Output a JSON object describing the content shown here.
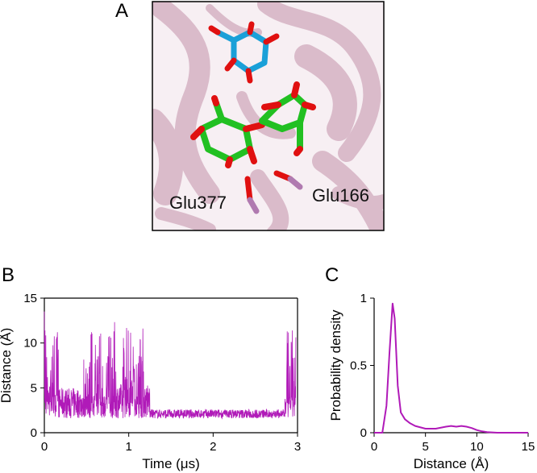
{
  "panels": {
    "a": {
      "label": "A",
      "residue_labels": [
        "Glu377",
        "Glu166"
      ],
      "colors": {
        "protein_ribbon": "#d6b3c4",
        "ligand_top": "#1aa0d8",
        "ligand_main": "#22c022",
        "oxygen": "#e01010",
        "residue": "#b07ab0"
      }
    },
    "b": {
      "label": "B"
    },
    "c": {
      "label": "C"
    }
  },
  "chart_data": [
    {
      "type": "line",
      "panel": "B",
      "xlabel": "Time (μs)",
      "ylabel": "Distance (Å)",
      "xlim": [
        0,
        3
      ],
      "ylim": [
        0,
        15
      ],
      "xticks": [
        "0",
        "1",
        "2",
        "3"
      ],
      "yticks": [
        "0",
        "5",
        "10",
        "15"
      ],
      "color": "#b01ab8",
      "segments": [
        {
          "x0": 0.0,
          "x1": 0.04,
          "low": 2.0,
          "high": 14.5
        },
        {
          "x0": 0.04,
          "x1": 0.17,
          "low": 1.8,
          "high": 11.5
        },
        {
          "x0": 0.17,
          "x1": 0.45,
          "low": 1.6,
          "high": 5.0
        },
        {
          "x0": 0.45,
          "x1": 0.55,
          "low": 1.6,
          "high": 8.5
        },
        {
          "x0": 0.55,
          "x1": 0.85,
          "low": 1.6,
          "high": 12.5
        },
        {
          "x0": 0.85,
          "x1": 0.92,
          "low": 1.6,
          "high": 5.5
        },
        {
          "x0": 0.92,
          "x1": 1.18,
          "low": 1.6,
          "high": 12.0
        },
        {
          "x0": 1.18,
          "x1": 1.25,
          "low": 1.6,
          "high": 5.5
        },
        {
          "x0": 1.25,
          "x1": 2.85,
          "low": 1.6,
          "high": 2.6
        },
        {
          "x0": 2.85,
          "x1": 2.98,
          "low": 1.6,
          "high": 11.5
        }
      ]
    },
    {
      "type": "line",
      "panel": "C",
      "xlabel": "Distance (Å)",
      "ylabel": "Probability density",
      "xlim": [
        0,
        15
      ],
      "ylim": [
        0,
        1
      ],
      "xticks": [
        "0",
        "5",
        "10",
        "15"
      ],
      "yticks": [
        "0",
        "0.5",
        "1"
      ],
      "color": "#b01ab8",
      "x": [
        0,
        0.8,
        1.2,
        1.5,
        1.8,
        2.0,
        2.3,
        2.6,
        3.0,
        3.5,
        4.0,
        5.0,
        6.0,
        7.0,
        7.5,
        8.0,
        8.5,
        9.0,
        9.5,
        10.0,
        10.5,
        11.0,
        12.0,
        15.0
      ],
      "y": [
        0,
        0.0,
        0.2,
        0.6,
        0.96,
        0.85,
        0.35,
        0.15,
        0.1,
        0.07,
        0.05,
        0.03,
        0.03,
        0.045,
        0.05,
        0.045,
        0.05,
        0.045,
        0.035,
        0.02,
        0.01,
        0.005,
        0.0,
        0.0
      ]
    }
  ]
}
